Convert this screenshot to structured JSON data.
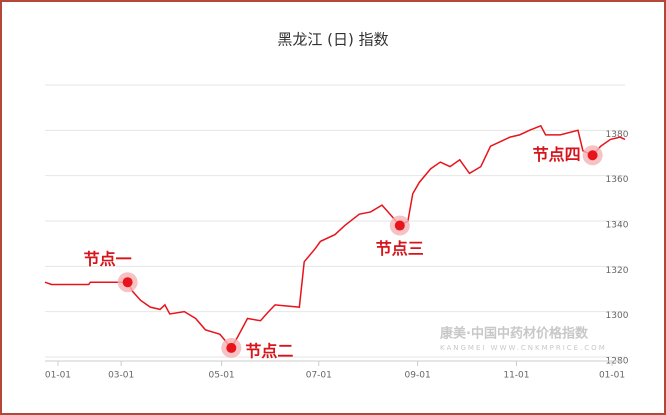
{
  "chart_data": {
    "type": "line",
    "title": "黑龙江 (日) 指数",
    "x": [
      0,
      4,
      27,
      28,
      51,
      54,
      59,
      65,
      71,
      74,
      77,
      86,
      93,
      99,
      108,
      115,
      119,
      125,
      133,
      138,
      142,
      157,
      160,
      167,
      170,
      179,
      185,
      194,
      201,
      208,
      213,
      219,
      224,
      227,
      231,
      238,
      244,
      250,
      256,
      262,
      269,
      275,
      281,
      287,
      293,
      299,
      306,
      309,
      318,
      329,
      332,
      338,
      343,
      349,
      355,
      358
    ],
    "series": [
      {
        "name": "黑龙江",
        "color": "#e8141b",
        "values": [
          1313,
          1312,
          1312,
          1313,
          1313,
          1309,
          1305,
          1302,
          1301,
          1303,
          1299,
          1300,
          1297,
          1292,
          1290,
          1284,
          1289,
          1297,
          1296,
          1300,
          1303,
          1302,
          1322,
          1328,
          1331,
          1334,
          1338,
          1343,
          1344,
          1347,
          1343,
          1338,
          1340,
          1352,
          1357,
          1363,
          1366,
          1364,
          1367,
          1361,
          1364,
          1373,
          1375,
          1377,
          1378,
          1380,
          1382,
          1378,
          1378,
          1380,
          1371,
          1369,
          1373,
          1376,
          1377,
          1376
        ]
      }
    ],
    "xlim": [
      0,
      358
    ],
    "xticks": [
      {
        "value": 8,
        "label": "01-01"
      },
      {
        "value": 47,
        "label": "03-01"
      },
      {
        "value": 109,
        "label": "05-01"
      },
      {
        "value": 169,
        "label": "07-01"
      },
      {
        "value": 230,
        "label": "09-01"
      },
      {
        "value": 291,
        "label": "11-01"
      },
      {
        "value": 350,
        "label": "01-01"
      }
    ],
    "ylim": [
      1280,
      1400
    ],
    "yticks": [
      1280,
      1300,
      1320,
      1340,
      1360,
      1380
    ],
    "grid": true,
    "annotations": [
      {
        "label": "节点一",
        "x": 51,
        "y": 1313
      },
      {
        "label": "节点二",
        "x": 115,
        "y": 1284
      },
      {
        "label": "节点三",
        "x": 219,
        "y": 1338
      },
      {
        "label": "节点四",
        "x": 338,
        "y": 1369
      }
    ],
    "watermark": {
      "title": "康美·中国中药材价格指数",
      "url": "KANGMEI WWW.CNKMPRICE.COM"
    }
  }
}
